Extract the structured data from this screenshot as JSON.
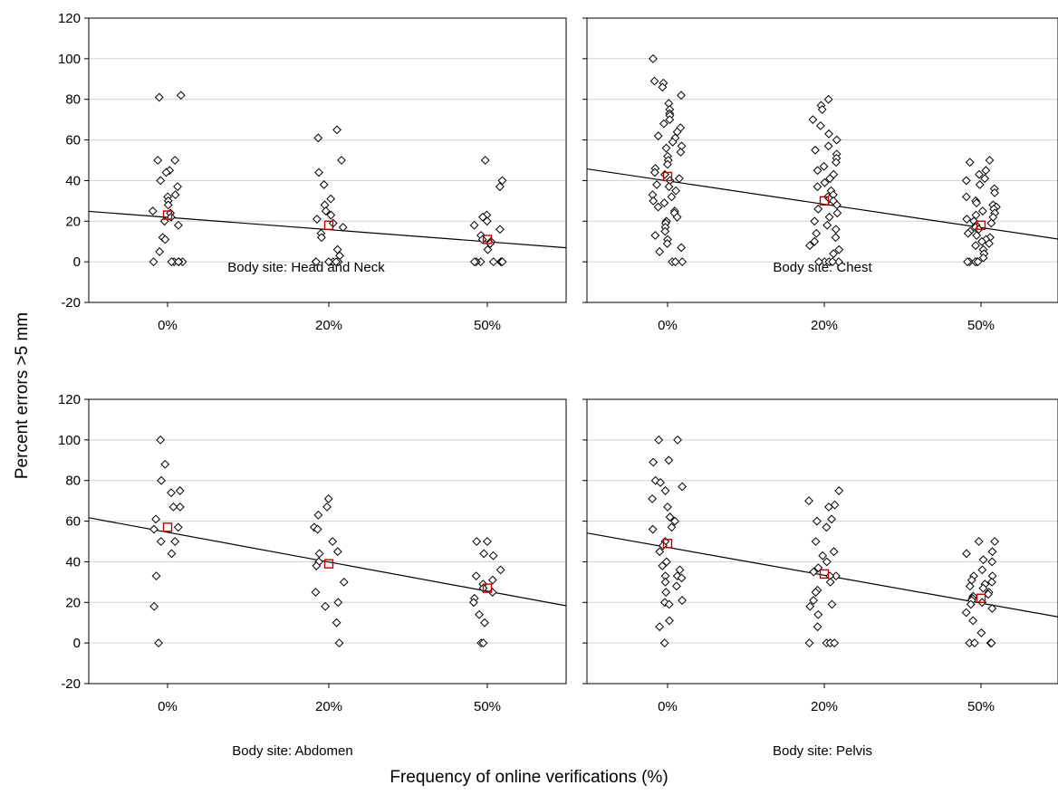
{
  "figure": {
    "ylabel": "Percent errors >5 mm",
    "xlabel": "Frequency of online verifications (%)"
  },
  "chart_data": [
    {
      "type": "scatter",
      "caption": "Body site: Head and Neck",
      "categories": [
        "0%",
        "20%",
        "50%"
      ],
      "ylim": [
        -20,
        120
      ],
      "yticks": [
        -20,
        0,
        20,
        40,
        60,
        80,
        100,
        120
      ],
      "grid": true,
      "colors": {
        "points": "#000000",
        "means": "#c00000",
        "fit": "#000000"
      },
      "points": [
        [
          0,
          50
        ],
        [
          0,
          50
        ],
        [
          0,
          45
        ],
        [
          0,
          44
        ],
        [
          0,
          40
        ],
        [
          0,
          37
        ],
        [
          0,
          33
        ],
        [
          0,
          32
        ],
        [
          0,
          30
        ],
        [
          0,
          28
        ],
        [
          0,
          25
        ],
        [
          0,
          24
        ],
        [
          0,
          22
        ],
        [
          0,
          20
        ],
        [
          0,
          18
        ],
        [
          0,
          12
        ],
        [
          0,
          11
        ],
        [
          0,
          5
        ],
        [
          0,
          0
        ],
        [
          0,
          0
        ],
        [
          0,
          0
        ],
        [
          0,
          0
        ],
        [
          0,
          0
        ],
        [
          0,
          0
        ],
        [
          0,
          82
        ],
        [
          0,
          81
        ],
        [
          1,
          65
        ],
        [
          1,
          61
        ],
        [
          1,
          50
        ],
        [
          1,
          44
        ],
        [
          1,
          38
        ],
        [
          1,
          31
        ],
        [
          1,
          28
        ],
        [
          1,
          25
        ],
        [
          1,
          23
        ],
        [
          1,
          21
        ],
        [
          1,
          19
        ],
        [
          1,
          17
        ],
        [
          1,
          14
        ],
        [
          1,
          12
        ],
        [
          1,
          6
        ],
        [
          1,
          3
        ],
        [
          1,
          0
        ],
        [
          1,
          0
        ],
        [
          1,
          0
        ],
        [
          1,
          0
        ],
        [
          1,
          0
        ],
        [
          1,
          0
        ],
        [
          2,
          50
        ],
        [
          2,
          40
        ],
        [
          2,
          37
        ],
        [
          2,
          23
        ],
        [
          2,
          22
        ],
        [
          2,
          20
        ],
        [
          2,
          18
        ],
        [
          2,
          16
        ],
        [
          2,
          13
        ],
        [
          2,
          11
        ],
        [
          2,
          10
        ],
        [
          2,
          9
        ],
        [
          2,
          6
        ],
        [
          2,
          0
        ],
        [
          2,
          0
        ],
        [
          2,
          0
        ],
        [
          2,
          0
        ],
        [
          2,
          0
        ],
        [
          2,
          0
        ],
        [
          2,
          0
        ]
      ],
      "means": [
        23,
        18,
        11
      ],
      "fit": {
        "y_at_0": 22.5,
        "y_at_50": 10.5
      }
    },
    {
      "type": "scatter",
      "caption": "Body site: Chest",
      "categories": [
        "0%",
        "20%",
        "50%"
      ],
      "ylim": [
        -20,
        120
      ],
      "yticks": [
        -20,
        0,
        20,
        40,
        60,
        80,
        100,
        120
      ],
      "grid": true,
      "colors": {
        "points": "#000000",
        "means": "#c00000",
        "fit": "#000000"
      },
      "points": [
        [
          0,
          100
        ],
        [
          0,
          89
        ],
        [
          0,
          88
        ],
        [
          0,
          86
        ],
        [
          0,
          82
        ],
        [
          0,
          78
        ],
        [
          0,
          75
        ],
        [
          0,
          73
        ],
        [
          0,
          72
        ],
        [
          0,
          70
        ],
        [
          0,
          68
        ],
        [
          0,
          66
        ],
        [
          0,
          64
        ],
        [
          0,
          62
        ],
        [
          0,
          61
        ],
        [
          0,
          59
        ],
        [
          0,
          57
        ],
        [
          0,
          56
        ],
        [
          0,
          54
        ],
        [
          0,
          52
        ],
        [
          0,
          50
        ],
        [
          0,
          48
        ],
        [
          0,
          46
        ],
        [
          0,
          44
        ],
        [
          0,
          43
        ],
        [
          0,
          41
        ],
        [
          0,
          40
        ],
        [
          0,
          38
        ],
        [
          0,
          37
        ],
        [
          0,
          35
        ],
        [
          0,
          33
        ],
        [
          0,
          32
        ],
        [
          0,
          30
        ],
        [
          0,
          29
        ],
        [
          0,
          27
        ],
        [
          0,
          25
        ],
        [
          0,
          24
        ],
        [
          0,
          22
        ],
        [
          0,
          20
        ],
        [
          0,
          19
        ],
        [
          0,
          17
        ],
        [
          0,
          15
        ],
        [
          0,
          13
        ],
        [
          0,
          11
        ],
        [
          0,
          9
        ],
        [
          0,
          7
        ],
        [
          0,
          5
        ],
        [
          0,
          0
        ],
        [
          0,
          0
        ],
        [
          0,
          0
        ],
        [
          1,
          80
        ],
        [
          1,
          77
        ],
        [
          1,
          75
        ],
        [
          1,
          70
        ],
        [
          1,
          67
        ],
        [
          1,
          63
        ],
        [
          1,
          60
        ],
        [
          1,
          57
        ],
        [
          1,
          55
        ],
        [
          1,
          53
        ],
        [
          1,
          51
        ],
        [
          1,
          49
        ],
        [
          1,
          47
        ],
        [
          1,
          45
        ],
        [
          1,
          43
        ],
        [
          1,
          41
        ],
        [
          1,
          39
        ],
        [
          1,
          37
        ],
        [
          1,
          35
        ],
        [
          1,
          33
        ],
        [
          1,
          32
        ],
        [
          1,
          31
        ],
        [
          1,
          30
        ],
        [
          1,
          28
        ],
        [
          1,
          26
        ],
        [
          1,
          24
        ],
        [
          1,
          22
        ],
        [
          1,
          20
        ],
        [
          1,
          18
        ],
        [
          1,
          16
        ],
        [
          1,
          14
        ],
        [
          1,
          12
        ],
        [
          1,
          10
        ],
        [
          1,
          8
        ],
        [
          1,
          6
        ],
        [
          1,
          4
        ],
        [
          1,
          0
        ],
        [
          1,
          0
        ],
        [
          1,
          0
        ],
        [
          1,
          0
        ],
        [
          1,
          0
        ],
        [
          2,
          50
        ],
        [
          2,
          49
        ],
        [
          2,
          45
        ],
        [
          2,
          43
        ],
        [
          2,
          41
        ],
        [
          2,
          40
        ],
        [
          2,
          38
        ],
        [
          2,
          36
        ],
        [
          2,
          34
        ],
        [
          2,
          32
        ],
        [
          2,
          30
        ],
        [
          2,
          29
        ],
        [
          2,
          28
        ],
        [
          2,
          27
        ],
        [
          2,
          26
        ],
        [
          2,
          25
        ],
        [
          2,
          24
        ],
        [
          2,
          23
        ],
        [
          2,
          22
        ],
        [
          2,
          21
        ],
        [
          2,
          20
        ],
        [
          2,
          19
        ],
        [
          2,
          18
        ],
        [
          2,
          17
        ],
        [
          2,
          16
        ],
        [
          2,
          15
        ],
        [
          2,
          14
        ],
        [
          2,
          13
        ],
        [
          2,
          12
        ],
        [
          2,
          11
        ],
        [
          2,
          10
        ],
        [
          2,
          9
        ],
        [
          2,
          8
        ],
        [
          2,
          6
        ],
        [
          2,
          4
        ],
        [
          2,
          2
        ],
        [
          2,
          0
        ],
        [
          2,
          0
        ],
        [
          2,
          0
        ],
        [
          2,
          0
        ],
        [
          2,
          0
        ]
      ],
      "means": [
        42,
        30,
        18
      ],
      "fit": {
        "y_at_0": 41,
        "y_at_50": 18
      }
    },
    {
      "type": "scatter",
      "caption": "Body site: Abdomen",
      "categories": [
        "0%",
        "20%",
        "50%"
      ],
      "ylim": [
        -20,
        120
      ],
      "yticks": [
        -20,
        0,
        20,
        40,
        60,
        80,
        100,
        120
      ],
      "grid": true,
      "colors": {
        "points": "#000000",
        "means": "#c00000",
        "fit": "#000000"
      },
      "points": [
        [
          0,
          100
        ],
        [
          0,
          88
        ],
        [
          0,
          80
        ],
        [
          0,
          75
        ],
        [
          0,
          74
        ],
        [
          0,
          67
        ],
        [
          0,
          67
        ],
        [
          0,
          61
        ],
        [
          0,
          57
        ],
        [
          0,
          56
        ],
        [
          0,
          50
        ],
        [
          0,
          50
        ],
        [
          0,
          44
        ],
        [
          0,
          33
        ],
        [
          0,
          18
        ],
        [
          0,
          0
        ],
        [
          1,
          71
        ],
        [
          1,
          67
        ],
        [
          1,
          63
        ],
        [
          1,
          57
        ],
        [
          1,
          56
        ],
        [
          1,
          50
        ],
        [
          1,
          45
        ],
        [
          1,
          44
        ],
        [
          1,
          40
        ],
        [
          1,
          38
        ],
        [
          1,
          30
        ],
        [
          1,
          25
        ],
        [
          1,
          20
        ],
        [
          1,
          18
        ],
        [
          1,
          10
        ],
        [
          1,
          0
        ],
        [
          2,
          50
        ],
        [
          2,
          50
        ],
        [
          2,
          44
        ],
        [
          2,
          43
        ],
        [
          2,
          36
        ],
        [
          2,
          33
        ],
        [
          2,
          31
        ],
        [
          2,
          29
        ],
        [
          2,
          27
        ],
        [
          2,
          25
        ],
        [
          2,
          22
        ],
        [
          2,
          20
        ],
        [
          2,
          14
        ],
        [
          2,
          10
        ],
        [
          2,
          0
        ],
        [
          2,
          0
        ]
      ],
      "means": [
        57,
        39,
        27
      ],
      "fit": {
        "y_at_0": 56,
        "y_at_50": 27
      }
    },
    {
      "type": "scatter",
      "caption": "Body site: Pelvis",
      "categories": [
        "0%",
        "20%",
        "50%"
      ],
      "ylim": [
        -20,
        120
      ],
      "yticks": [
        -20,
        0,
        20,
        40,
        60,
        80,
        100,
        120
      ],
      "grid": true,
      "colors": {
        "points": "#000000",
        "means": "#c00000",
        "fit": "#000000"
      },
      "points": [
        [
          0,
          100
        ],
        [
          0,
          100
        ],
        [
          0,
          90
        ],
        [
          0,
          89
        ],
        [
          0,
          80
        ],
        [
          0,
          79
        ],
        [
          0,
          77
        ],
        [
          0,
          75
        ],
        [
          0,
          71
        ],
        [
          0,
          67
        ],
        [
          0,
          62
        ],
        [
          0,
          60
        ],
        [
          0,
          57
        ],
        [
          0,
          56
        ],
        [
          0,
          50
        ],
        [
          0,
          48
        ],
        [
          0,
          45
        ],
        [
          0,
          40
        ],
        [
          0,
          38
        ],
        [
          0,
          36
        ],
        [
          0,
          33
        ],
        [
          0,
          33
        ],
        [
          0,
          32
        ],
        [
          0,
          30
        ],
        [
          0,
          28
        ],
        [
          0,
          25
        ],
        [
          0,
          21
        ],
        [
          0,
          20
        ],
        [
          0,
          19
        ],
        [
          0,
          11
        ],
        [
          0,
          8
        ],
        [
          0,
          0
        ],
        [
          1,
          75
        ],
        [
          1,
          70
        ],
        [
          1,
          68
        ],
        [
          1,
          67
        ],
        [
          1,
          61
        ],
        [
          1,
          60
        ],
        [
          1,
          57
        ],
        [
          1,
          50
        ],
        [
          1,
          45
        ],
        [
          1,
          43
        ],
        [
          1,
          40
        ],
        [
          1,
          37
        ],
        [
          1,
          35
        ],
        [
          1,
          33
        ],
        [
          1,
          33
        ],
        [
          1,
          30
        ],
        [
          1,
          26
        ],
        [
          1,
          25
        ],
        [
          1,
          21
        ],
        [
          1,
          19
        ],
        [
          1,
          18
        ],
        [
          1,
          14
        ],
        [
          1,
          8
        ],
        [
          1,
          0
        ],
        [
          1,
          0
        ],
        [
          1,
          0
        ],
        [
          1,
          0
        ],
        [
          2,
          50
        ],
        [
          2,
          50
        ],
        [
          2,
          45
        ],
        [
          2,
          44
        ],
        [
          2,
          41
        ],
        [
          2,
          40
        ],
        [
          2,
          36
        ],
        [
          2,
          33
        ],
        [
          2,
          33
        ],
        [
          2,
          31
        ],
        [
          2,
          30
        ],
        [
          2,
          29
        ],
        [
          2,
          28
        ],
        [
          2,
          27
        ],
        [
          2,
          25
        ],
        [
          2,
          24
        ],
        [
          2,
          23
        ],
        [
          2,
          22
        ],
        [
          2,
          21
        ],
        [
          2,
          20
        ],
        [
          2,
          19
        ],
        [
          2,
          17
        ],
        [
          2,
          15
        ],
        [
          2,
          11
        ],
        [
          2,
          5
        ],
        [
          2,
          0
        ],
        [
          2,
          0
        ],
        [
          2,
          0
        ],
        [
          2,
          0
        ]
      ],
      "means": [
        49,
        34,
        22
      ],
      "fit": {
        "y_at_0": 48.5,
        "y_at_50": 21
      }
    }
  ]
}
